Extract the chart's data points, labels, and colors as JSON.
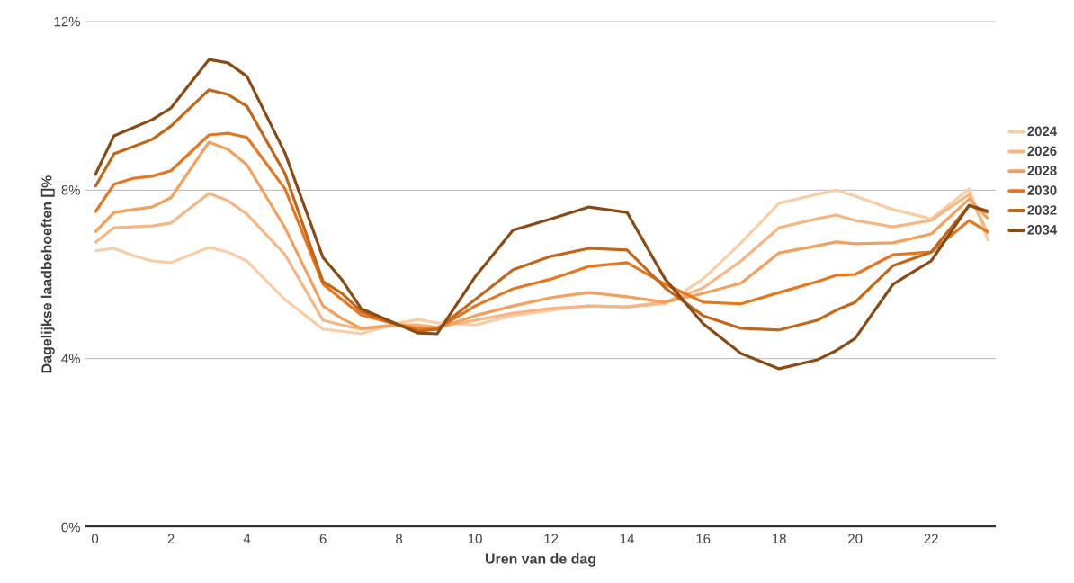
{
  "chart_data": {
    "type": "line",
    "xlabel": "Uren van de dag",
    "ylabel": "Dagelijkse laadbehoeften []%",
    "x": [
      0,
      0.5,
      1,
      1.5,
      2,
      3,
      3.5,
      4,
      5,
      6,
      6.5,
      7,
      8,
      8.5,
      9,
      10,
      11,
      12,
      13,
      14,
      15,
      16,
      17,
      18,
      19,
      19.5,
      20,
      21,
      22,
      23,
      23.5
    ],
    "series": [
      {
        "name": "2024",
        "color": "#f9cda6",
        "values": [
          6.56,
          6.62,
          6.45,
          6.32,
          6.28,
          6.64,
          6.53,
          6.32,
          5.4,
          4.7,
          4.65,
          4.59,
          4.85,
          4.93,
          4.85,
          4.8,
          5.02,
          5.15,
          5.25,
          5.23,
          5.3,
          5.89,
          6.75,
          7.69,
          7.9,
          8.0,
          7.86,
          7.54,
          7.32,
          8.03,
          6.79
        ]
      },
      {
        "name": "2026",
        "color": "#f6b683",
        "values": [
          6.75,
          7.11,
          7.13,
          7.15,
          7.22,
          7.92,
          7.75,
          7.43,
          6.47,
          4.91,
          4.8,
          4.7,
          4.8,
          4.8,
          4.75,
          4.91,
          5.08,
          5.19,
          5.25,
          5.23,
          5.34,
          5.68,
          6.32,
          7.11,
          7.32,
          7.41,
          7.28,
          7.13,
          7.28,
          7.9,
          6.96
        ]
      },
      {
        "name": "2028",
        "color": "#f2a05c",
        "values": [
          7.0,
          7.47,
          7.54,
          7.6,
          7.82,
          9.14,
          8.97,
          8.6,
          7.11,
          5.25,
          4.95,
          4.72,
          4.8,
          4.75,
          4.72,
          5.02,
          5.25,
          5.45,
          5.57,
          5.47,
          5.34,
          5.55,
          5.79,
          6.51,
          6.68,
          6.77,
          6.73,
          6.75,
          6.96,
          7.79,
          7.32
        ]
      },
      {
        "name": "2030",
        "color": "#e8761e",
        "values": [
          7.47,
          8.14,
          8.28,
          8.33,
          8.46,
          9.31,
          9.35,
          9.25,
          8.03,
          5.77,
          5.4,
          5.04,
          4.8,
          4.7,
          4.7,
          5.25,
          5.66,
          5.89,
          6.19,
          6.28,
          5.77,
          5.34,
          5.3,
          5.57,
          5.83,
          5.98,
          6.0,
          6.47,
          6.53,
          7.28,
          7.0
        ]
      },
      {
        "name": "2032",
        "color": "#c2661a",
        "values": [
          8.07,
          8.86,
          9.03,
          9.2,
          9.52,
          10.38,
          10.27,
          9.99,
          8.39,
          5.83,
          5.55,
          5.12,
          4.8,
          4.65,
          4.7,
          5.4,
          6.11,
          6.43,
          6.62,
          6.58,
          5.68,
          5.02,
          4.72,
          4.68,
          4.91,
          5.15,
          5.34,
          6.21,
          6.53,
          7.64,
          7.47
        ]
      },
      {
        "name": "2034",
        "color": "#8a4a14",
        "values": [
          8.35,
          9.29,
          9.48,
          9.67,
          9.95,
          11.1,
          11.02,
          10.7,
          8.88,
          6.4,
          5.87,
          5.19,
          4.8,
          4.61,
          4.59,
          5.94,
          7.05,
          7.32,
          7.6,
          7.47,
          5.89,
          4.83,
          4.12,
          3.76,
          3.97,
          4.19,
          4.48,
          5.77,
          6.32,
          7.64,
          7.5
        ]
      }
    ],
    "xlim": [
      -0.25,
      23.7
    ],
    "ylim": [
      0,
      12
    ],
    "xticks": [
      0,
      2,
      4,
      6,
      8,
      10,
      12,
      14,
      16,
      18,
      20,
      22
    ],
    "yticks": [
      {
        "value": 0,
        "label": "0%"
      },
      {
        "value": 4,
        "label": "4%"
      },
      {
        "value": 8,
        "label": "8%"
      },
      {
        "value": 12,
        "label": "12%"
      }
    ],
    "grid": "y",
    "legend": "right",
    "marker": "none",
    "line_style": "solid"
  }
}
